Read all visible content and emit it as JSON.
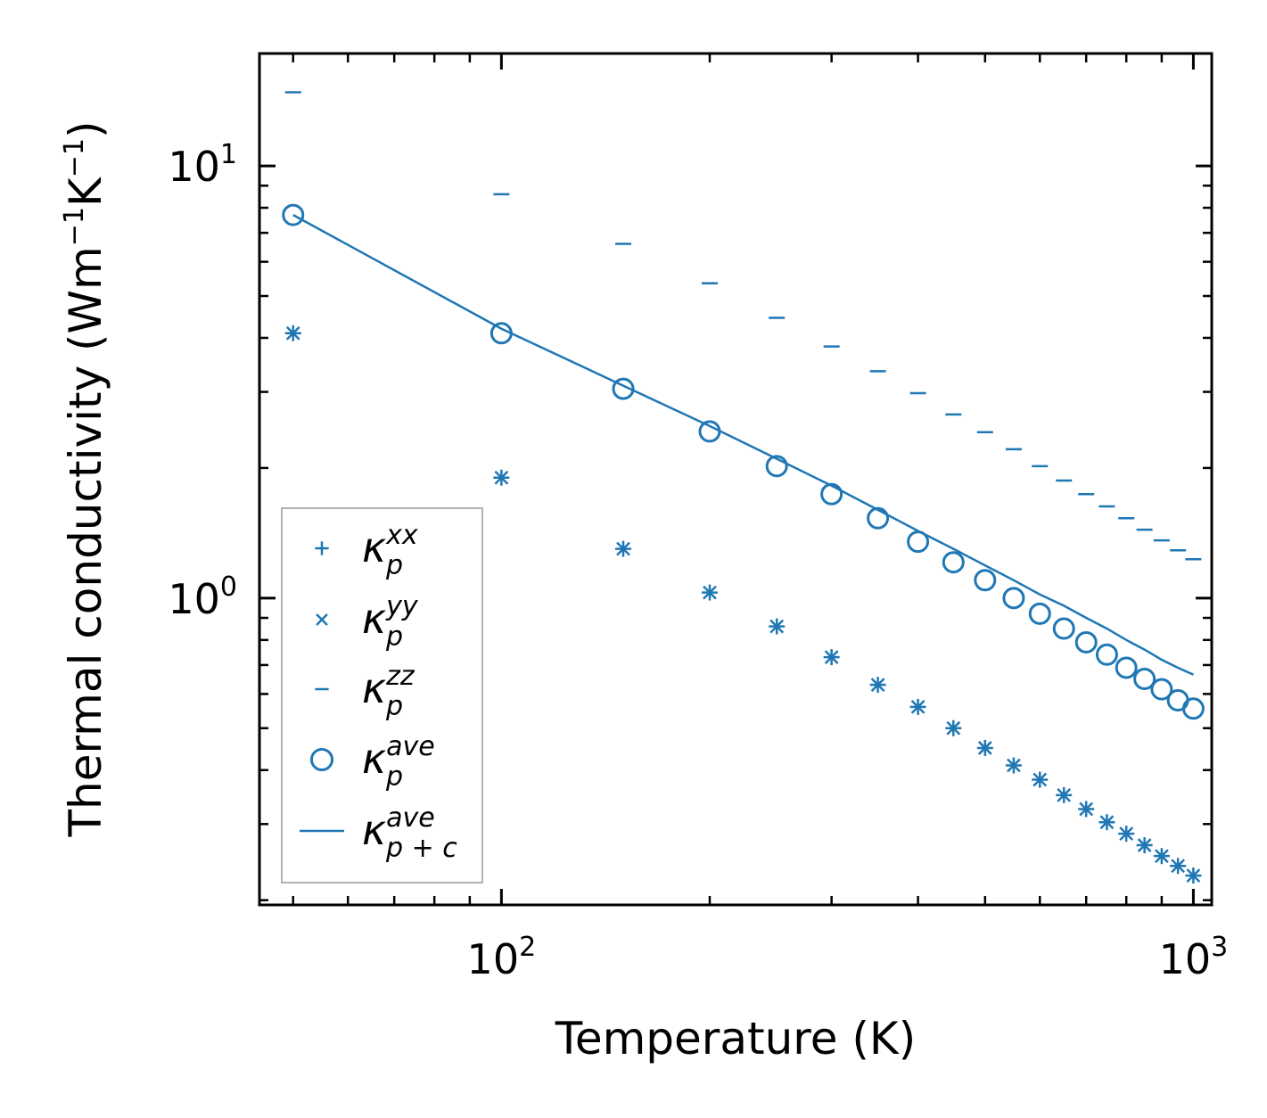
{
  "chart_data": {
    "type": "scatter",
    "xscale": "log",
    "yscale": "log",
    "xlim": [
      44.7,
      1063
    ],
    "ylim": [
      0.195,
      18.2
    ],
    "xlabel": "Temperature (K)",
    "ylabel_main": "Thermal conductivity (Wm",
    "ylabel_sup1": "−1",
    "ylabel_mid": "K",
    "ylabel_sup2": "−1",
    "ylabel_close": ")",
    "x_ticks": [
      {
        "value": 100,
        "base": "10",
        "exp": "2"
      },
      {
        "value": 1000,
        "base": "10",
        "exp": "3"
      }
    ],
    "y_ticks": [
      {
        "value": 1,
        "base": "10",
        "exp": "0"
      },
      {
        "value": 10,
        "base": "10",
        "exp": "1"
      }
    ],
    "x": [
      50,
      100,
      150,
      200,
      250,
      300,
      350,
      400,
      450,
      500,
      550,
      600,
      650,
      700,
      750,
      800,
      850,
      900,
      950,
      1000
    ],
    "series": [
      {
        "name": "kxx",
        "marker": "plus",
        "label_base": "κ",
        "label_sub": "p",
        "label_sup": "xx",
        "values": [
          4.1,
          1.9,
          1.3,
          1.03,
          0.86,
          0.73,
          0.63,
          0.56,
          0.5,
          0.45,
          0.41,
          0.38,
          0.35,
          0.325,
          0.303,
          0.285,
          0.268,
          0.253,
          0.24,
          0.228
        ]
      },
      {
        "name": "kyy",
        "marker": "x",
        "label_base": "κ",
        "label_sub": "p",
        "label_sup": "yy",
        "values": [
          4.1,
          1.9,
          1.3,
          1.03,
          0.86,
          0.73,
          0.63,
          0.56,
          0.5,
          0.45,
          0.41,
          0.38,
          0.35,
          0.325,
          0.303,
          0.285,
          0.268,
          0.253,
          0.24,
          0.228
        ]
      },
      {
        "name": "kzz",
        "marker": "hline",
        "label_base": "κ",
        "label_sub": "p",
        "label_sup": "zz",
        "values": [
          14.8,
          8.6,
          6.6,
          5.35,
          4.45,
          3.82,
          3.35,
          2.98,
          2.66,
          2.42,
          2.21,
          2.02,
          1.87,
          1.74,
          1.63,
          1.53,
          1.44,
          1.36,
          1.29,
          1.23
        ]
      },
      {
        "name": "kave",
        "marker": "circle",
        "label_base": "κ",
        "label_sub": "p",
        "label_sup": "ave",
        "values": [
          7.7,
          4.1,
          3.05,
          2.43,
          2.02,
          1.74,
          1.53,
          1.35,
          1.21,
          1.1,
          1.0,
          0.92,
          0.85,
          0.79,
          0.74,
          0.69,
          0.65,
          0.615,
          0.58,
          0.555
        ]
      },
      {
        "name": "kave_pc",
        "marker": "line",
        "label_base": "κ",
        "label_sub": "p + c",
        "label_sup": "ave",
        "values": [
          7.7,
          4.2,
          3.1,
          2.5,
          2.1,
          1.82,
          1.6,
          1.43,
          1.3,
          1.19,
          1.1,
          1.02,
          0.96,
          0.9,
          0.85,
          0.8,
          0.76,
          0.72,
          0.69,
          0.665
        ]
      }
    ],
    "legend_location": "lower-left",
    "color": "#1f77b4"
  }
}
